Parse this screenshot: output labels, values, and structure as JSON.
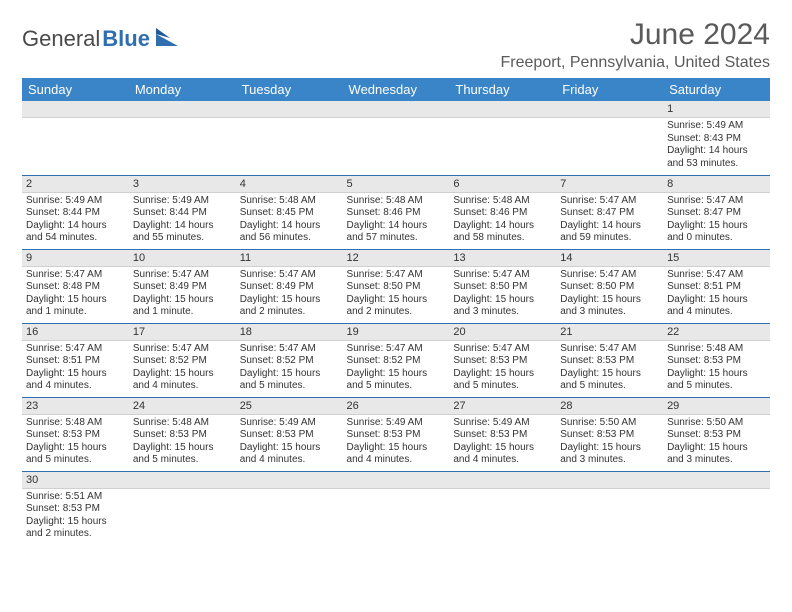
{
  "logo": {
    "word1": "General",
    "word2": "Blue"
  },
  "title": "June 2024",
  "location": "Freeport, Pennsylvania, United States",
  "colors": {
    "header_bg": "#3a85c8",
    "header_text": "#ffffff",
    "daynum_bg": "#e8e8e8",
    "border": "#2f6fb0",
    "text": "#333333",
    "logo_gray": "#4a4a4a",
    "logo_blue": "#2f6fb0"
  },
  "day_names": [
    "Sunday",
    "Monday",
    "Tuesday",
    "Wednesday",
    "Thursday",
    "Friday",
    "Saturday"
  ],
  "weeks": [
    [
      null,
      null,
      null,
      null,
      null,
      null,
      {
        "n": "1",
        "sr": "Sunrise: 5:49 AM",
        "ss": "Sunset: 8:43 PM",
        "dl": "Daylight: 14 hours and 53 minutes."
      }
    ],
    [
      {
        "n": "2",
        "sr": "Sunrise: 5:49 AM",
        "ss": "Sunset: 8:44 PM",
        "dl": "Daylight: 14 hours and 54 minutes."
      },
      {
        "n": "3",
        "sr": "Sunrise: 5:49 AM",
        "ss": "Sunset: 8:44 PM",
        "dl": "Daylight: 14 hours and 55 minutes."
      },
      {
        "n": "4",
        "sr": "Sunrise: 5:48 AM",
        "ss": "Sunset: 8:45 PM",
        "dl": "Daylight: 14 hours and 56 minutes."
      },
      {
        "n": "5",
        "sr": "Sunrise: 5:48 AM",
        "ss": "Sunset: 8:46 PM",
        "dl": "Daylight: 14 hours and 57 minutes."
      },
      {
        "n": "6",
        "sr": "Sunrise: 5:48 AM",
        "ss": "Sunset: 8:46 PM",
        "dl": "Daylight: 14 hours and 58 minutes."
      },
      {
        "n": "7",
        "sr": "Sunrise: 5:47 AM",
        "ss": "Sunset: 8:47 PM",
        "dl": "Daylight: 14 hours and 59 minutes."
      },
      {
        "n": "8",
        "sr": "Sunrise: 5:47 AM",
        "ss": "Sunset: 8:47 PM",
        "dl": "Daylight: 15 hours and 0 minutes."
      }
    ],
    [
      {
        "n": "9",
        "sr": "Sunrise: 5:47 AM",
        "ss": "Sunset: 8:48 PM",
        "dl": "Daylight: 15 hours and 1 minute."
      },
      {
        "n": "10",
        "sr": "Sunrise: 5:47 AM",
        "ss": "Sunset: 8:49 PM",
        "dl": "Daylight: 15 hours and 1 minute."
      },
      {
        "n": "11",
        "sr": "Sunrise: 5:47 AM",
        "ss": "Sunset: 8:49 PM",
        "dl": "Daylight: 15 hours and 2 minutes."
      },
      {
        "n": "12",
        "sr": "Sunrise: 5:47 AM",
        "ss": "Sunset: 8:50 PM",
        "dl": "Daylight: 15 hours and 2 minutes."
      },
      {
        "n": "13",
        "sr": "Sunrise: 5:47 AM",
        "ss": "Sunset: 8:50 PM",
        "dl": "Daylight: 15 hours and 3 minutes."
      },
      {
        "n": "14",
        "sr": "Sunrise: 5:47 AM",
        "ss": "Sunset: 8:50 PM",
        "dl": "Daylight: 15 hours and 3 minutes."
      },
      {
        "n": "15",
        "sr": "Sunrise: 5:47 AM",
        "ss": "Sunset: 8:51 PM",
        "dl": "Daylight: 15 hours and 4 minutes."
      }
    ],
    [
      {
        "n": "16",
        "sr": "Sunrise: 5:47 AM",
        "ss": "Sunset: 8:51 PM",
        "dl": "Daylight: 15 hours and 4 minutes."
      },
      {
        "n": "17",
        "sr": "Sunrise: 5:47 AM",
        "ss": "Sunset: 8:52 PM",
        "dl": "Daylight: 15 hours and 4 minutes."
      },
      {
        "n": "18",
        "sr": "Sunrise: 5:47 AM",
        "ss": "Sunset: 8:52 PM",
        "dl": "Daylight: 15 hours and 5 minutes."
      },
      {
        "n": "19",
        "sr": "Sunrise: 5:47 AM",
        "ss": "Sunset: 8:52 PM",
        "dl": "Daylight: 15 hours and 5 minutes."
      },
      {
        "n": "20",
        "sr": "Sunrise: 5:47 AM",
        "ss": "Sunset: 8:53 PM",
        "dl": "Daylight: 15 hours and 5 minutes."
      },
      {
        "n": "21",
        "sr": "Sunrise: 5:47 AM",
        "ss": "Sunset: 8:53 PM",
        "dl": "Daylight: 15 hours and 5 minutes."
      },
      {
        "n": "22",
        "sr": "Sunrise: 5:48 AM",
        "ss": "Sunset: 8:53 PM",
        "dl": "Daylight: 15 hours and 5 minutes."
      }
    ],
    [
      {
        "n": "23",
        "sr": "Sunrise: 5:48 AM",
        "ss": "Sunset: 8:53 PM",
        "dl": "Daylight: 15 hours and 5 minutes."
      },
      {
        "n": "24",
        "sr": "Sunrise: 5:48 AM",
        "ss": "Sunset: 8:53 PM",
        "dl": "Daylight: 15 hours and 5 minutes."
      },
      {
        "n": "25",
        "sr": "Sunrise: 5:49 AM",
        "ss": "Sunset: 8:53 PM",
        "dl": "Daylight: 15 hours and 4 minutes."
      },
      {
        "n": "26",
        "sr": "Sunrise: 5:49 AM",
        "ss": "Sunset: 8:53 PM",
        "dl": "Daylight: 15 hours and 4 minutes."
      },
      {
        "n": "27",
        "sr": "Sunrise: 5:49 AM",
        "ss": "Sunset: 8:53 PM",
        "dl": "Daylight: 15 hours and 4 minutes."
      },
      {
        "n": "28",
        "sr": "Sunrise: 5:50 AM",
        "ss": "Sunset: 8:53 PM",
        "dl": "Daylight: 15 hours and 3 minutes."
      },
      {
        "n": "29",
        "sr": "Sunrise: 5:50 AM",
        "ss": "Sunset: 8:53 PM",
        "dl": "Daylight: 15 hours and 3 minutes."
      }
    ],
    [
      {
        "n": "30",
        "sr": "Sunrise: 5:51 AM",
        "ss": "Sunset: 8:53 PM",
        "dl": "Daylight: 15 hours and 2 minutes."
      },
      null,
      null,
      null,
      null,
      null,
      null
    ]
  ]
}
